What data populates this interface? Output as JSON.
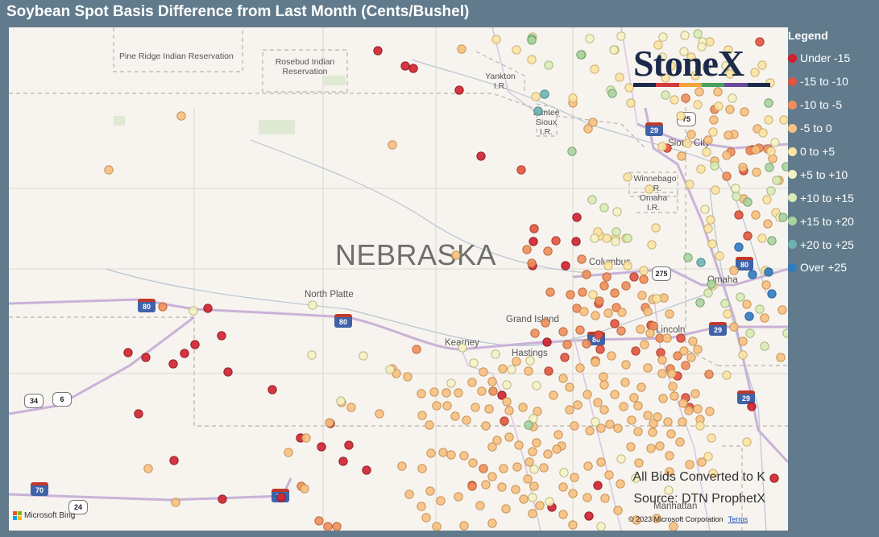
{
  "title": "Soybean Spot Basis Difference from Last Month (Cents/Bushel)",
  "legend": {
    "title": "Legend",
    "items": [
      {
        "label": "Under -15",
        "color": "#d0202e"
      },
      {
        "label": "-15 to -10",
        "color": "#e2543e"
      },
      {
        "label": "-10 to -5",
        "color": "#ee8e5a"
      },
      {
        "label": "-5 to 0",
        "color": "#f7c07e"
      },
      {
        "label": "0 to +5",
        "color": "#fbe3a3"
      },
      {
        "label": "+5 to +10",
        "color": "#f5f2c4"
      },
      {
        "label": "+10 to +15",
        "color": "#d8ebb4"
      },
      {
        "label": "+15 to +20",
        "color": "#a9d39e"
      },
      {
        "label": "+20 to +25",
        "color": "#6fb3b0"
      },
      {
        "label": "Over +25",
        "color": "#2f7cc0"
      }
    ]
  },
  "map": {
    "state_label": "NEBRASKA",
    "places": {
      "pine_ridge": "Pine Ridge Indian Reservation",
      "rosebud": "Rosebud Indian Reservation",
      "yankton": "Yankton I.R.",
      "santee": "Santee Sioux I.R.",
      "winnebago": "Winnebago I.R.",
      "omaha_ir": "Omaha I.R.",
      "sioux_city": "Sioux City",
      "columbus": "Columbus",
      "omaha": "Omaha",
      "north_platte": "North Platte",
      "grand_island": "Grand Island",
      "kearney": "Kearney",
      "hastings": "Hastings",
      "lincoln": "Lincoln",
      "manhattan": "Manhattan"
    },
    "highways": [
      "80",
      "80",
      "80",
      "80",
      "29",
      "29",
      "29",
      "34",
      "6",
      "70",
      "24",
      "70",
      "75",
      "275"
    ],
    "logo": "StoneX",
    "notes": [
      "All Bids Converted to K",
      "Source: DTN ProphetX"
    ],
    "copyright": "© 2023 Microsoft Corporation",
    "terms": "Terms",
    "attribution": "Microsoft Bing"
  }
}
